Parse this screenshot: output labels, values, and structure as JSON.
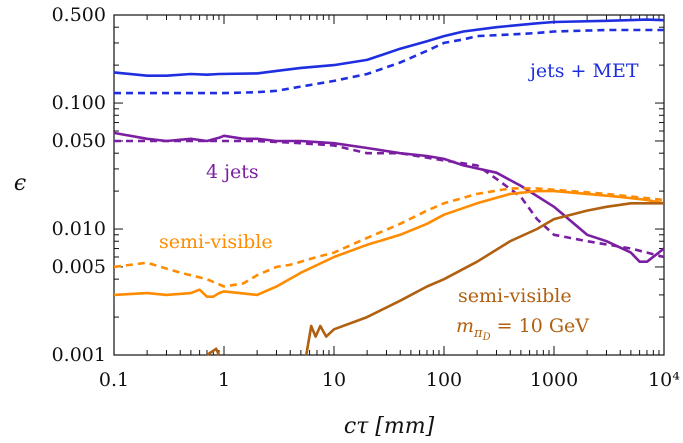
{
  "chart_data": {
    "type": "line",
    "xlabel": "cτ [mm]",
    "ylabel": "ϵ",
    "x_scale": "log",
    "y_scale": "log",
    "xlim": [
      0.1,
      10000
    ],
    "ylim": [
      0.001,
      0.5
    ],
    "x_tick_labels": [
      "0.1",
      "1",
      "10",
      "100",
      "1000",
      "10⁴"
    ],
    "x_tick_values": [
      0.1,
      1,
      10,
      100,
      1000,
      10000
    ],
    "y_tick_labels": [
      "0.001",
      "0.005",
      "0.010",
      "0.050",
      "0.100",
      "0.500"
    ],
    "y_tick_values": [
      0.001,
      0.005,
      0.01,
      0.05,
      0.1,
      0.5
    ],
    "grid": false,
    "colors": {
      "jets_met": "#1f2fe0",
      "four_jets": "#7b1fa2",
      "semi_visible": "#ff8c00",
      "semi_visible_10gev": "#b06010"
    },
    "annotations": [
      {
        "text": "jets + MET",
        "color": "#1f2fe0"
      },
      {
        "text": "4 jets",
        "color": "#7b1fa2"
      },
      {
        "text": "semi-visible",
        "color": "#ff8c00"
      },
      {
        "text": "semi-visible",
        "color": "#b06010"
      },
      {
        "text": "m",
        "sub": "π",
        "subsub": "D",
        "rest": " = 10 GeV",
        "color": "#b06010"
      }
    ],
    "series": [
      {
        "color": "#1f2fe0",
        "dash": false,
        "x": [
          0.1,
          0.2,
          0.3,
          0.5,
          0.7,
          0.9,
          2,
          3,
          5,
          10,
          20,
          40,
          70,
          100,
          150,
          300,
          700,
          1000,
          3000,
          7000,
          10000
        ],
        "y": [
          0.175,
          0.165,
          0.165,
          0.17,
          0.168,
          0.17,
          0.172,
          0.18,
          0.19,
          0.2,
          0.22,
          0.27,
          0.31,
          0.34,
          0.37,
          0.4,
          0.43,
          0.44,
          0.45,
          0.46,
          0.455
        ]
      },
      {
        "color": "#1f2fe0",
        "dash": true,
        "x": [
          0.1,
          0.3,
          0.5,
          0.7,
          1,
          2,
          3,
          5,
          10,
          20,
          40,
          70,
          100,
          150,
          200,
          400,
          700,
          1000,
          3000,
          10000
        ],
        "y": [
          0.12,
          0.12,
          0.12,
          0.12,
          0.12,
          0.122,
          0.125,
          0.135,
          0.15,
          0.17,
          0.21,
          0.26,
          0.3,
          0.32,
          0.34,
          0.35,
          0.36,
          0.37,
          0.38,
          0.38
        ]
      },
      {
        "color": "#7b1fa2",
        "dash": false,
        "x": [
          0.1,
          0.2,
          0.3,
          0.5,
          0.7,
          0.9,
          1,
          1.5,
          2,
          3,
          5,
          10,
          20,
          40,
          70,
          100,
          150,
          300,
          500,
          1000,
          2000,
          3000,
          5000,
          6000,
          7000,
          10000
        ],
        "y": [
          0.058,
          0.052,
          0.05,
          0.052,
          0.05,
          0.053,
          0.055,
          0.052,
          0.052,
          0.05,
          0.05,
          0.048,
          0.044,
          0.04,
          0.038,
          0.036,
          0.032,
          0.028,
          0.022,
          0.015,
          0.009,
          0.008,
          0.0065,
          0.0055,
          0.0055,
          0.007
        ]
      },
      {
        "color": "#7b1fa2",
        "dash": true,
        "x": [
          0.1,
          0.3,
          0.5,
          1,
          2,
          5,
          10,
          20,
          40,
          100,
          200,
          300,
          500,
          700,
          1000,
          2000,
          5000,
          10000
        ],
        "y": [
          0.05,
          0.05,
          0.05,
          0.05,
          0.05,
          0.048,
          0.046,
          0.04,
          0.04,
          0.035,
          0.032,
          0.025,
          0.018,
          0.012,
          0.009,
          0.008,
          0.007,
          0.006
        ]
      },
      {
        "color": "#ff8c00",
        "dash": false,
        "x": [
          0.1,
          0.2,
          0.3,
          0.5,
          0.6,
          0.7,
          0.8,
          0.9,
          1,
          2,
          3,
          5,
          10,
          20,
          40,
          70,
          100,
          200,
          400,
          700,
          1000,
          2000,
          4000,
          7000,
          10000
        ],
        "y": [
          0.003,
          0.0031,
          0.003,
          0.0031,
          0.0033,
          0.0029,
          0.0029,
          0.0031,
          0.0032,
          0.003,
          0.0035,
          0.0045,
          0.006,
          0.0075,
          0.009,
          0.011,
          0.013,
          0.016,
          0.019,
          0.02,
          0.02,
          0.019,
          0.018,
          0.017,
          0.016
        ]
      },
      {
        "color": "#ff8c00",
        "dash": true,
        "x": [
          0.1,
          0.2,
          0.4,
          0.7,
          1,
          1.5,
          2,
          3,
          4,
          5,
          7,
          10,
          20,
          40,
          70,
          100,
          200,
          400,
          700,
          1000,
          3000,
          10000
        ],
        "y": [
          0.005,
          0.0054,
          0.0045,
          0.004,
          0.0035,
          0.0037,
          0.0043,
          0.005,
          0.0052,
          0.0055,
          0.006,
          0.0065,
          0.0085,
          0.011,
          0.014,
          0.016,
          0.019,
          0.021,
          0.021,
          0.0205,
          0.019,
          0.017
        ]
      },
      {
        "color": "#b06010",
        "dash": false,
        "x": [
          0.7,
          0.85,
          0.9
        ],
        "y": [
          0.001,
          0.00112,
          0.001
        ]
      },
      {
        "color": "#b06010",
        "dash": false,
        "x": [
          5.6,
          6.2,
          6.8,
          7.5,
          8.5,
          10,
          20,
          40,
          70,
          100,
          200,
          400,
          700,
          1000,
          2000,
          3000,
          5000,
          7000,
          10000
        ],
        "y": [
          0.001,
          0.0017,
          0.0014,
          0.0017,
          0.0014,
          0.0016,
          0.002,
          0.0027,
          0.0035,
          0.004,
          0.0055,
          0.008,
          0.01,
          0.012,
          0.014,
          0.015,
          0.016,
          0.016,
          0.016
        ]
      }
    ]
  }
}
